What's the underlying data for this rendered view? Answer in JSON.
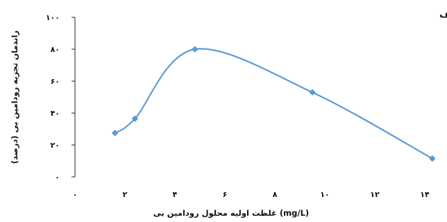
{
  "chart_data": {
    "type": "scatter",
    "panel_label": "الف",
    "xlabel": "غلظت اولیه محلول رودامین بی (mg/L)",
    "ylabel": "راندمان تجزیه رودامین بی (درصد)",
    "xlim": [
      0,
      14.5
    ],
    "ylim": [
      0,
      100
    ],
    "x_ticks": [
      0,
      2,
      4,
      6,
      8,
      10,
      12,
      14
    ],
    "x_tick_labels": [
      "۰",
      "۲",
      "۴",
      "۶",
      "۸",
      "۱۰",
      "۱۲",
      "۱۴"
    ],
    "y_ticks": [
      0,
      20,
      40,
      60,
      80,
      100
    ],
    "y_tick_labels": [
      "۰",
      "۲۰",
      "۴۰",
      "۶۰",
      "۸۰",
      "۱۰۰"
    ],
    "grid": false,
    "smooth_line": true,
    "series": [
      {
        "color": "#5b9bd5",
        "marker_color": "#5b9bd5",
        "marker": "diamond",
        "x": [
          1.6,
          2.4,
          4.8,
          9.5,
          14.3
        ],
        "y": [
          27.5,
          36.5,
          80,
          53,
          11.5
        ]
      }
    ]
  }
}
